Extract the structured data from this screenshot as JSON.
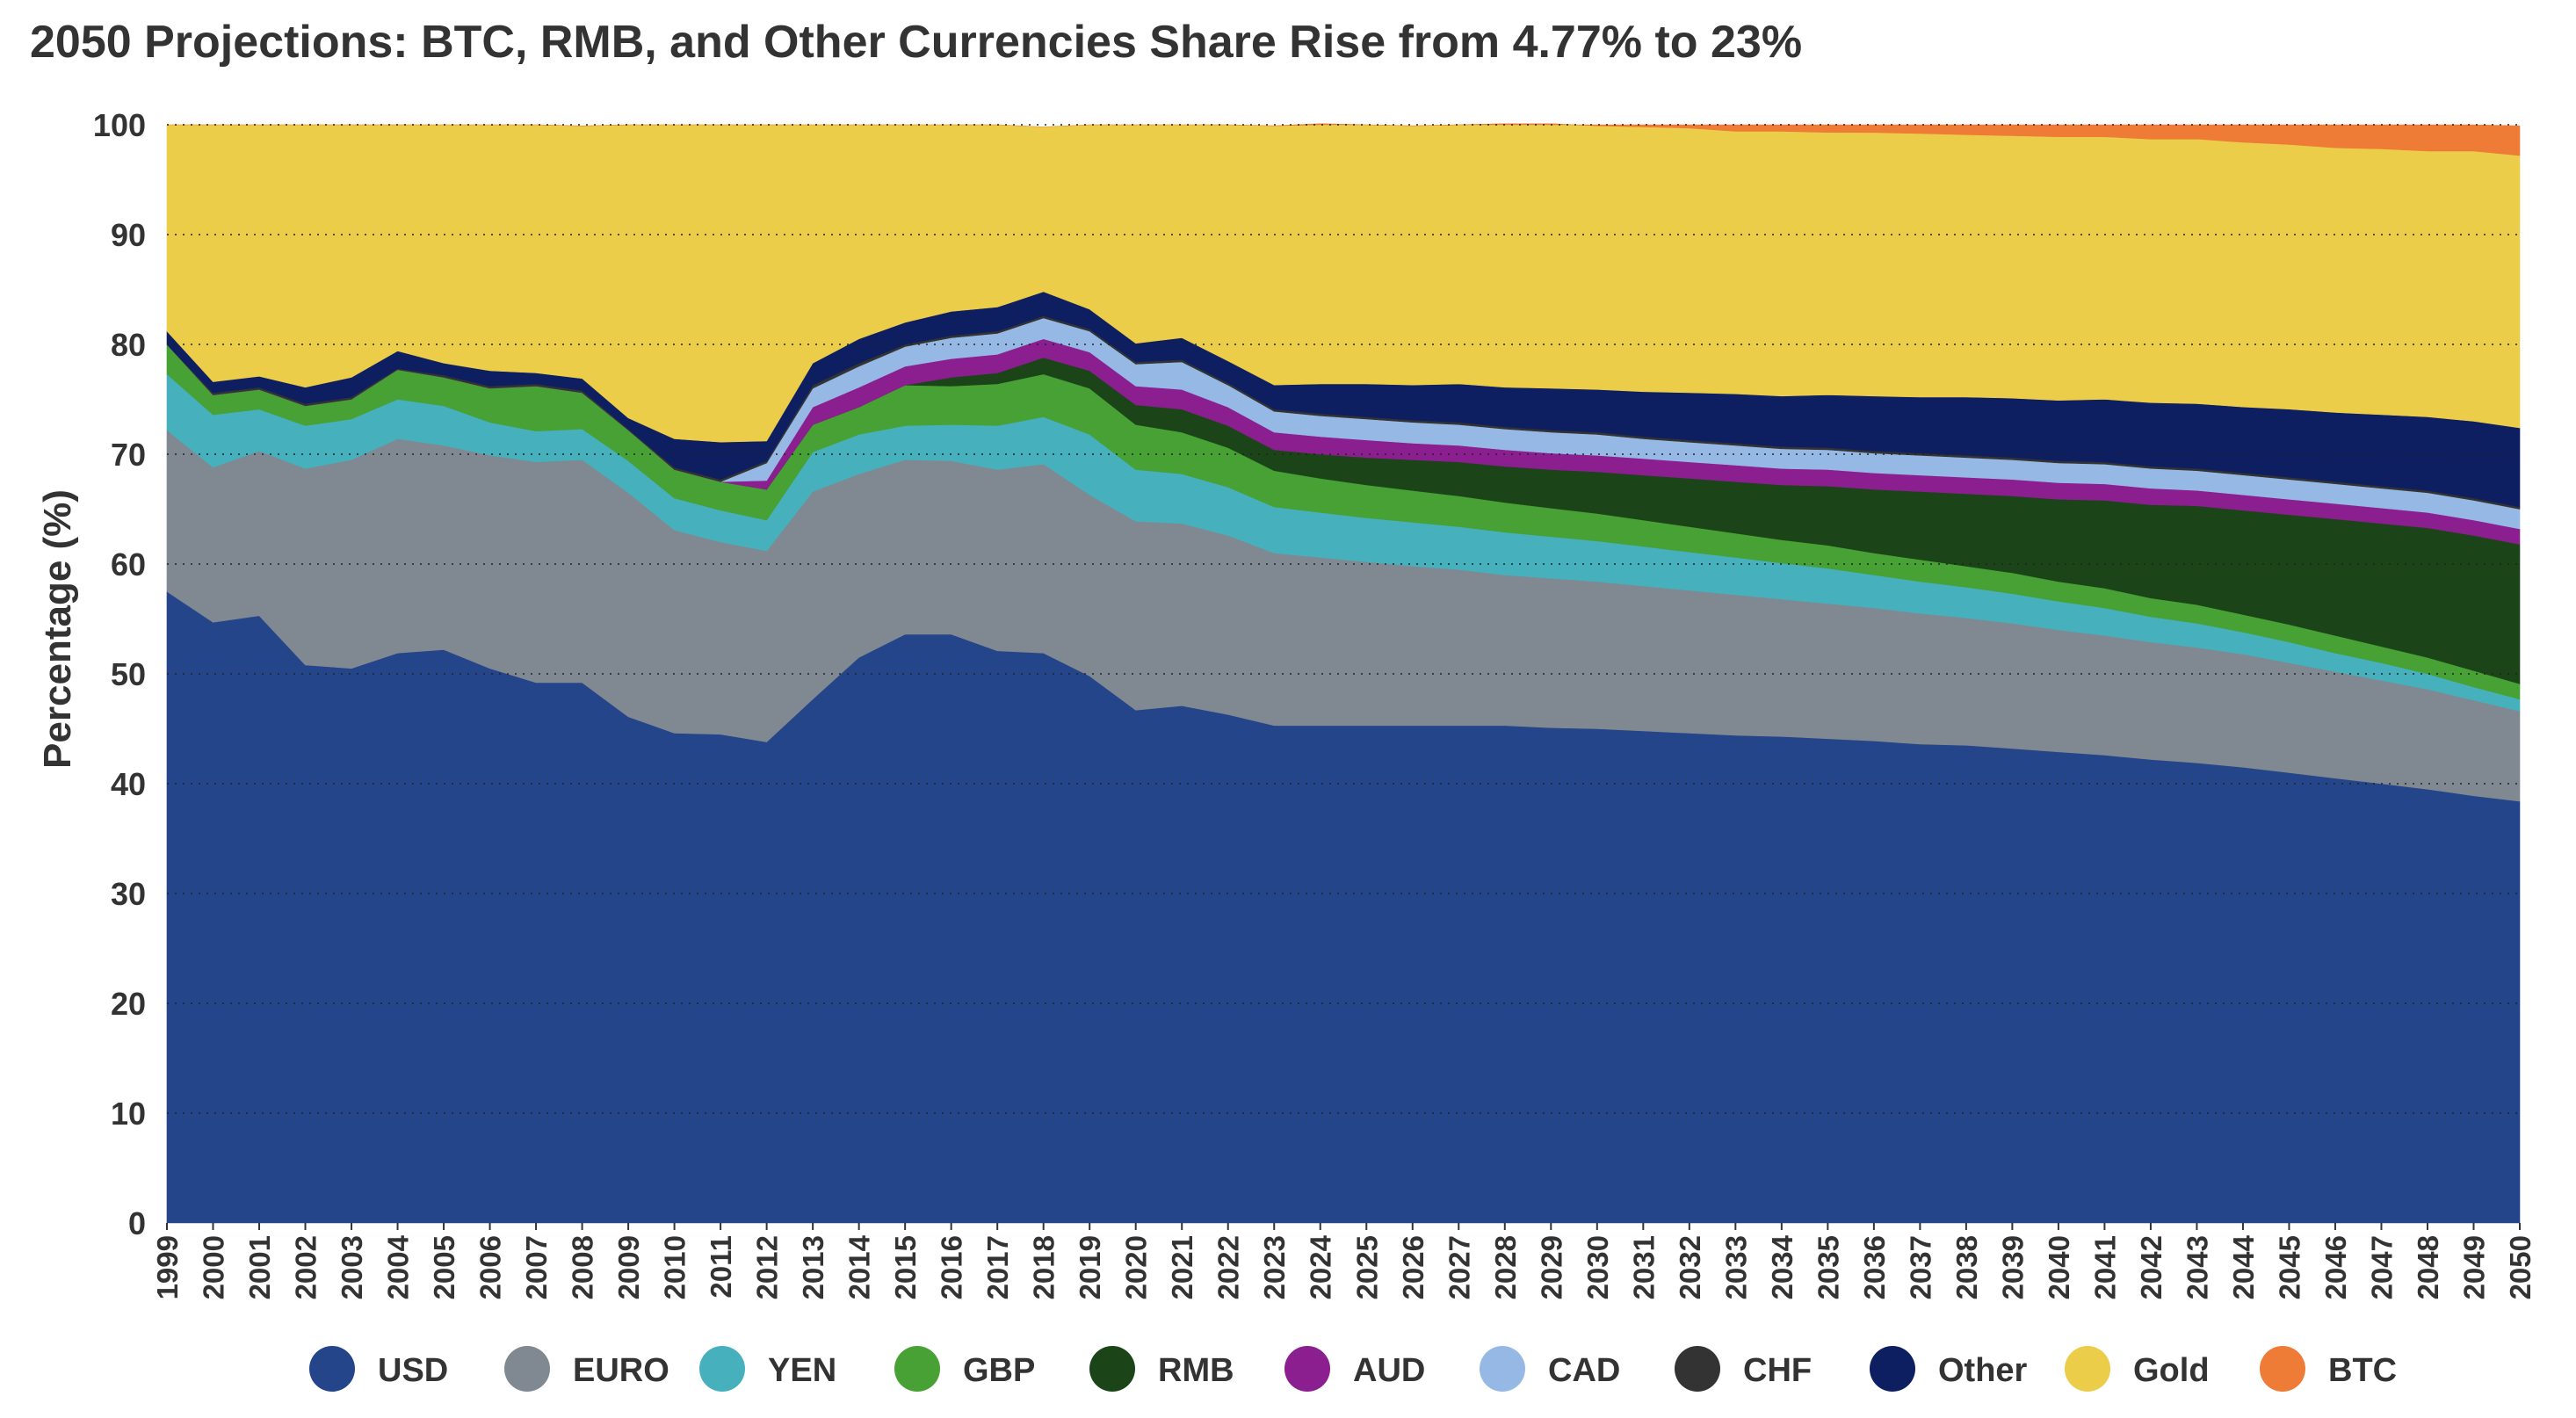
{
  "chart_data": {
    "type": "area",
    "stacked": true,
    "title": "2050 Projections: BTC, RMB, and Other Currencies Share Rise from 4.77% to 23%",
    "xlabel": "",
    "ylabel": "Percentage (%)",
    "ylim": [
      0,
      100
    ],
    "yticks": [
      0,
      10,
      20,
      30,
      40,
      50,
      60,
      70,
      80,
      90,
      100
    ],
    "grid": "horizontal dotted",
    "legend_position": "bottom",
    "x": [
      "1999",
      "2000",
      "2001",
      "2002",
      "2003",
      "2004",
      "2005",
      "2006",
      "2007",
      "2008",
      "2009",
      "2010",
      "2011",
      "2012",
      "2013",
      "2014",
      "2015",
      "2016",
      "2017",
      "2018",
      "2019",
      "2020",
      "2021",
      "2022",
      "2023",
      "2024",
      "2025",
      "2026",
      "2027",
      "2028",
      "2029",
      "2030",
      "2031",
      "2032",
      "2033",
      "2034",
      "2035",
      "2036",
      "2037",
      "2038",
      "2039",
      "2040",
      "2041",
      "2042",
      "2043",
      "2044",
      "2045",
      "2046",
      "2047",
      "2048",
      "2049",
      "2050"
    ],
    "series": [
      {
        "name": "USD",
        "color": "#244589",
        "values": [
          57.5,
          54.7,
          55.3,
          50.8,
          50.5,
          51.9,
          52.2,
          50.5,
          49.2,
          49.2,
          46.1,
          44.6,
          44.5,
          43.8,
          47.7,
          51.5,
          53.6,
          53.6,
          52.1,
          51.9,
          49.8,
          46.7,
          47.1,
          46.3,
          45.3,
          45.3,
          45.3,
          45.3,
          45.3,
          45.3,
          45.1,
          45.0,
          44.8,
          44.6,
          44.4,
          44.3,
          44.1,
          43.9,
          43.6,
          43.5,
          43.2,
          42.9,
          42.6,
          42.2,
          41.9,
          41.5,
          41.0,
          40.5,
          40.0,
          39.5,
          38.9,
          38.4
        ]
      },
      {
        "name": "EURO",
        "color": "#808891",
        "values": [
          14.7,
          14.1,
          15.0,
          17.9,
          19.0,
          19.5,
          18.6,
          19.4,
          20.1,
          20.3,
          20.4,
          18.5,
          17.5,
          17.4,
          18.9,
          16.7,
          15.9,
          15.8,
          16.5,
          17.2,
          16.5,
          17.2,
          16.6,
          16.3,
          15.7,
          15.3,
          14.9,
          14.5,
          14.2,
          13.7,
          13.6,
          13.4,
          13.2,
          13.0,
          12.8,
          12.5,
          12.3,
          12.1,
          11.9,
          11.6,
          11.4,
          11.1,
          10.9,
          10.7,
          10.5,
          10.3,
          10.0,
          9.7,
          9.4,
          9.1,
          8.7,
          8.2
        ]
      },
      {
        "name": "YEN",
        "color": "#46b0bd",
        "values": [
          5.1,
          4.8,
          3.8,
          3.9,
          3.7,
          3.6,
          3.6,
          3.0,
          2.8,
          2.8,
          2.9,
          2.9,
          2.9,
          2.8,
          3.6,
          3.6,
          3.1,
          3.3,
          4.0,
          4.3,
          5.5,
          4.7,
          4.5,
          4.4,
          4.2,
          4.1,
          4.0,
          4.0,
          3.9,
          3.9,
          3.8,
          3.7,
          3.6,
          3.5,
          3.4,
          3.3,
          3.2,
          3.0,
          2.9,
          2.8,
          2.7,
          2.6,
          2.5,
          2.3,
          2.2,
          2.0,
          1.9,
          1.7,
          1.6,
          1.4,
          1.2,
          1.1
        ]
      },
      {
        "name": "GBP",
        "color": "#47a135",
        "values": [
          2.7,
          1.8,
          1.8,
          1.8,
          1.8,
          2.7,
          2.6,
          3.1,
          4.1,
          3.3,
          2.8,
          2.6,
          2.6,
          2.8,
          2.5,
          2.5,
          3.7,
          3.5,
          3.8,
          3.9,
          4.2,
          4.1,
          3.8,
          3.6,
          3.3,
          3.1,
          3.0,
          2.9,
          2.8,
          2.7,
          2.6,
          2.5,
          2.4,
          2.3,
          2.2,
          2.1,
          2.1,
          2.0,
          2.0,
          1.9,
          1.9,
          1.8,
          1.8,
          1.7,
          1.7,
          1.6,
          1.6,
          1.6,
          1.5,
          1.5,
          1.5,
          1.4
        ]
      },
      {
        "name": "RMB",
        "color": "#1b4518",
        "values": [
          0,
          0,
          0,
          0,
          0,
          0,
          0,
          0,
          0,
          0,
          0,
          0,
          0,
          0,
          0,
          0,
          0,
          0.8,
          1.0,
          1.5,
          1.6,
          1.8,
          2.1,
          2.0,
          1.9,
          2.2,
          2.5,
          2.8,
          3.1,
          3.3,
          3.5,
          3.8,
          4.1,
          4.4,
          4.7,
          5.0,
          5.4,
          5.8,
          6.2,
          6.6,
          7.0,
          7.5,
          8.0,
          8.5,
          9.0,
          9.5,
          10.0,
          10.6,
          11.2,
          11.8,
          12.3,
          12.7
        ]
      },
      {
        "name": "AUD",
        "color": "#8b1f8f",
        "values": [
          0,
          0,
          0,
          0,
          0,
          0,
          0,
          0,
          0,
          0,
          0,
          0,
          0,
          0.8,
          1.6,
          1.8,
          1.7,
          1.7,
          1.7,
          1.7,
          1.7,
          1.7,
          1.8,
          1.7,
          1.6,
          1.6,
          1.6,
          1.5,
          1.5,
          1.5,
          1.5,
          1.5,
          1.5,
          1.5,
          1.5,
          1.5,
          1.5,
          1.5,
          1.5,
          1.5,
          1.5,
          1.5,
          1.5,
          1.5,
          1.4,
          1.4,
          1.4,
          1.4,
          1.4,
          1.4,
          1.4,
          1.4
        ]
      },
      {
        "name": "CAD",
        "color": "#96b8e4",
        "values": [
          0,
          0,
          0,
          0,
          0,
          0,
          0,
          0,
          0,
          0,
          0,
          0,
          0,
          1.6,
          1.7,
          1.9,
          1.8,
          1.9,
          1.9,
          1.9,
          1.9,
          2.0,
          2.5,
          2.0,
          1.9,
          1.9,
          1.9,
          1.9,
          1.9,
          1.9,
          1.9,
          1.9,
          1.8,
          1.8,
          1.8,
          1.8,
          1.8,
          1.8,
          1.8,
          1.8,
          1.8,
          1.8,
          1.8,
          1.8,
          1.8,
          1.8,
          1.8,
          1.8,
          1.8,
          1.8,
          1.8,
          1.8
        ]
      },
      {
        "name": "CHF",
        "color": "#333333",
        "values": [
          0,
          0.2,
          0.2,
          0.2,
          0.2,
          0.1,
          0.2,
          0.2,
          0.2,
          0.2,
          0.1,
          0.2,
          0.2,
          0.2,
          0.3,
          0.3,
          0.2,
          0.2,
          0.2,
          0.2,
          0.2,
          0.2,
          0.2,
          0.2,
          0.2,
          0.2,
          0.2,
          0.2,
          0.2,
          0.2,
          0.2,
          0.2,
          0.2,
          0.2,
          0.2,
          0.2,
          0.2,
          0.2,
          0.2,
          0.2,
          0.2,
          0.2,
          0.2,
          0.2,
          0.2,
          0.2,
          0.2,
          0.2,
          0.2,
          0.2,
          0.2,
          0.2
        ]
      },
      {
        "name": "Other",
        "color": "#0e1f61",
        "values": [
          1.2,
          1.0,
          1.0,
          1.5,
          1.8,
          1.6,
          1.1,
          1.4,
          1.0,
          1.1,
          1.0,
          2.6,
          3.4,
          1.8,
          2.0,
          2.2,
          2.0,
          2.2,
          2.2,
          2.2,
          1.8,
          1.7,
          2.0,
          2.0,
          2.2,
          2.7,
          3.0,
          3.2,
          3.5,
          3.6,
          3.8,
          3.9,
          4.1,
          4.3,
          4.5,
          4.6,
          4.8,
          5.0,
          5.1,
          5.3,
          5.4,
          5.5,
          5.7,
          5.8,
          5.9,
          6.0,
          6.2,
          6.3,
          6.5,
          6.7,
          7.0,
          7.2
        ]
      },
      {
        "name": "Gold",
        "color": "#ebcd4a",
        "values": [
          18.8,
          23.4,
          22.9,
          23.9,
          23.0,
          20.6,
          21.7,
          22.4,
          22.6,
          23.0,
          26.7,
          28.6,
          28.9,
          28.8,
          21.7,
          19.5,
          18.0,
          17.0,
          16.6,
          15.0,
          16.8,
          19.9,
          19.4,
          21.5,
          23.6,
          23.7,
          23.6,
          23.6,
          23.6,
          24.0,
          24.1,
          24.0,
          24.1,
          24.1,
          23.9,
          24.1,
          23.9,
          24.0,
          24.0,
          23.9,
          23.9,
          24.0,
          23.9,
          24.0,
          24.1,
          24.1,
          24.1,
          24.1,
          24.2,
          24.2,
          24.6,
          24.8
        ]
      },
      {
        "name": "BTC",
        "color": "#ee7b36",
        "values": [
          0,
          0,
          0,
          0,
          0,
          0,
          0,
          0,
          0,
          0,
          0,
          0,
          0,
          0,
          0,
          0,
          0,
          0,
          0,
          0,
          0,
          0,
          0,
          0,
          0,
          0,
          0,
          0,
          0,
          0.1,
          0.2,
          0.6,
          0.7,
          0.8,
          0.8,
          0.9,
          0.9,
          0.9,
          1.0,
          1.1,
          1.2,
          1.3,
          1.5,
          1.7,
          1.8,
          1.9,
          2.0,
          2.1,
          2.2,
          2.5,
          2.6,
          2.7
        ]
      }
    ]
  }
}
